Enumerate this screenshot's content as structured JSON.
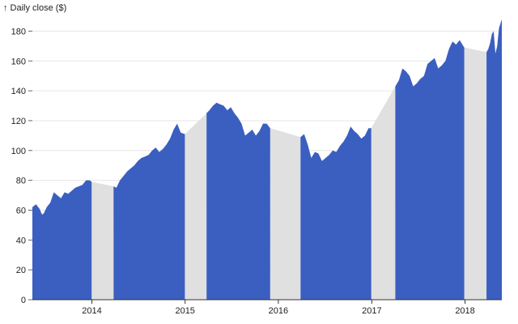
{
  "chart_data": {
    "type": "area",
    "title": "",
    "ylabel": "↑ Daily close ($)",
    "xlabel": "",
    "ylim": [
      0,
      190
    ],
    "y_ticks": [
      0,
      20,
      40,
      60,
      80,
      100,
      120,
      140,
      160,
      180
    ],
    "x_ticks": [
      "2014",
      "2015",
      "2016",
      "2017",
      "2018"
    ],
    "x_range": [
      "2013-05-13",
      "2018-05-25"
    ],
    "grid": "horizontal",
    "colors": {
      "fill": "#3b5fc0",
      "gap_fill": "#e0e0e0"
    },
    "series": [
      {
        "segments": [
          {
            "x": [
              "2013-05-13",
              "2013-05-27",
              "2013-06-10",
              "2013-06-20",
              "2013-06-27",
              "2013-07-08",
              "2013-07-22",
              "2013-08-05",
              "2013-08-19",
              "2013-09-02",
              "2013-09-16",
              "2013-09-30",
              "2013-10-14",
              "2013-10-28",
              "2013-11-11",
              "2013-11-25",
              "2013-12-09",
              "2013-12-23",
              "2013-12-31"
            ],
            "y": [
              62,
              64,
              61,
              57,
              58,
              62,
              65,
              72,
              70,
              68,
              72,
              71,
              73,
              75,
              76,
              77,
              80,
              80,
              79
            ]
          },
          {
            "x": [
              "2014-03-27",
              "2014-04-07",
              "2014-04-21",
              "2014-05-05",
              "2014-05-19",
              "2014-06-02",
              "2014-06-16",
              "2014-06-30",
              "2014-07-14",
              "2014-07-28",
              "2014-08-11",
              "2014-08-25",
              "2014-09-08",
              "2014-09-22",
              "2014-10-06",
              "2014-10-20",
              "2014-11-03",
              "2014-11-17",
              "2014-12-01",
              "2014-12-15",
              "2014-12-31"
            ],
            "y": [
              76,
              75,
              80,
              83,
              86,
              88,
              90,
              93,
              95,
              96,
              97,
              100,
              102,
              99,
              101,
              104,
              108,
              114,
              118,
              112,
              111
            ]
          },
          {
            "x": [
              "2015-03-26",
              "2015-04-06",
              "2015-04-20",
              "2015-05-04",
              "2015-05-18",
              "2015-06-01",
              "2015-06-15",
              "2015-06-29",
              "2015-07-13",
              "2015-07-27",
              "2015-08-10",
              "2015-08-24",
              "2015-09-07",
              "2015-09-21",
              "2015-10-05",
              "2015-10-19",
              "2015-11-02",
              "2015-11-16",
              "2015-11-30"
            ],
            "y": [
              125,
              127,
              130,
              132,
              131,
              130,
              127,
              129,
              125,
              122,
              118,
              110,
              112,
              114,
              110,
              113,
              118,
              118,
              115
            ]
          },
          {
            "x": [
              "2016-03-28",
              "2016-04-11",
              "2016-04-25",
              "2016-05-09",
              "2016-05-23",
              "2016-06-06",
              "2016-06-20",
              "2016-07-04",
              "2016-07-18",
              "2016-08-01",
              "2016-08-15",
              "2016-08-29",
              "2016-09-12",
              "2016-09-26",
              "2016-10-10",
              "2016-10-24",
              "2016-11-07",
              "2016-11-21",
              "2016-12-05",
              "2016-12-19",
              "2016-12-30"
            ],
            "y": [
              109,
              111,
              104,
              95,
              99,
              98,
              93,
              95,
              97,
              100,
              99,
              103,
              106,
              110,
              116,
              113,
              111,
              108,
              110,
              115,
              115
            ]
          },
          {
            "x": [
              "2017-04-03",
              "2017-04-17",
              "2017-05-01",
              "2017-05-15",
              "2017-05-29",
              "2017-06-12",
              "2017-06-26",
              "2017-07-10",
              "2017-07-24",
              "2017-08-07",
              "2017-08-21",
              "2017-09-04",
              "2017-09-18",
              "2017-10-02",
              "2017-10-16",
              "2017-10-30",
              "2017-11-13",
              "2017-11-27",
              "2017-12-11",
              "2017-12-29"
            ],
            "y": [
              143,
              147,
              155,
              153,
              150,
              143,
              145,
              148,
              150,
              158,
              160,
              162,
              155,
              157,
              160,
              168,
              173,
              171,
              174,
              169
            ]
          },
          {
            "x": [
              "2018-03-26",
              "2018-04-02",
              "2018-04-09",
              "2018-04-16",
              "2018-04-23",
              "2018-04-30",
              "2018-05-07",
              "2018-05-14",
              "2018-05-25"
            ],
            "y": [
              166,
              168,
              172,
              178,
              180,
              165,
              170,
              182,
              188
            ]
          }
        ]
      }
    ]
  }
}
